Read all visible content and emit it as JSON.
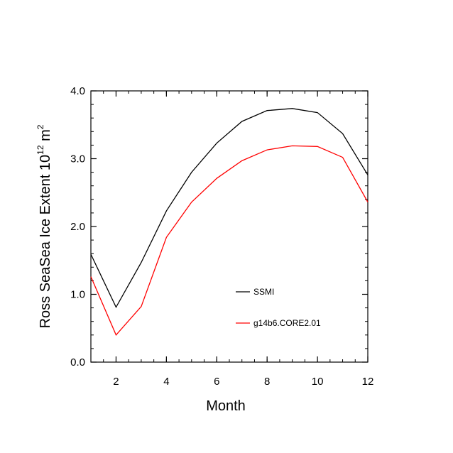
{
  "chart_data": {
    "type": "line",
    "xlabel": "Month",
    "ylabel": {
      "prefix": "Ross SeaSea Ice Extent 10",
      "exp1": "12",
      "mid": " m",
      "exp2": "2"
    },
    "xlim": [
      1,
      12
    ],
    "ylim": [
      0.0,
      4.0
    ],
    "xticks": [
      2,
      4,
      6,
      8,
      10,
      12
    ],
    "yticks": [
      0.0,
      1.0,
      2.0,
      3.0,
      4.0
    ],
    "ytick_labels": [
      "0.0",
      "1.0",
      "2.0",
      "3.0",
      "4.0"
    ],
    "x": [
      1,
      2,
      3,
      4,
      5,
      6,
      7,
      8,
      9,
      10,
      11,
      12
    ],
    "series": [
      {
        "name": "SSMI",
        "color": "#000000",
        "values": [
          1.59,
          0.81,
          1.47,
          2.23,
          2.8,
          3.23,
          3.55,
          3.71,
          3.74,
          3.68,
          3.37,
          2.76
        ]
      },
      {
        "name": "g14b6.CORE2.01",
        "color": "#ff0000",
        "values": [
          1.26,
          0.4,
          0.82,
          1.84,
          2.36,
          2.71,
          2.97,
          3.13,
          3.19,
          3.18,
          3.02,
          2.36
        ]
      }
    ],
    "legend_position": "lower-right inside"
  }
}
